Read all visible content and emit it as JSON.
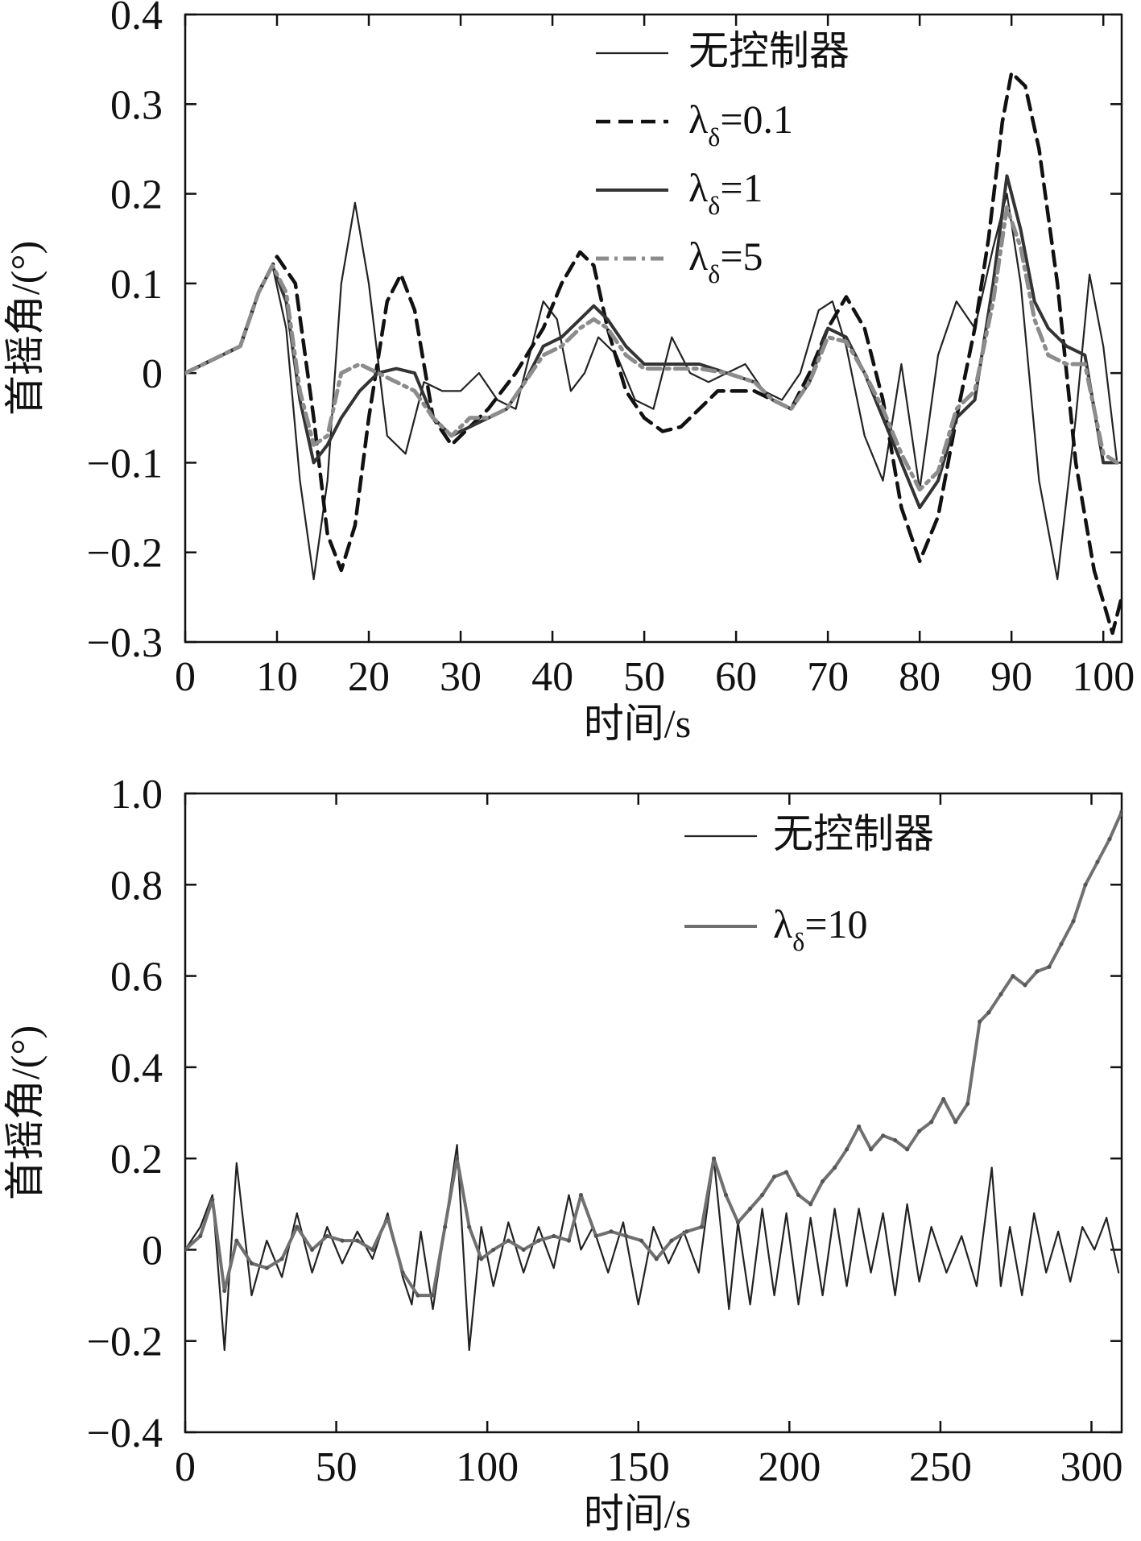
{
  "chart_data": [
    {
      "type": "line",
      "xlabel": "时间/s",
      "ylabel": "首摇角/(°)",
      "xlim": [
        0,
        102
      ],
      "ylim": [
        -0.3,
        0.4
      ],
      "xticks": [
        "0",
        "10",
        "20",
        "30",
        "40",
        "50",
        "60",
        "70",
        "80",
        "90",
        "100"
      ],
      "xtick_values": [
        0,
        10,
        20,
        30,
        40,
        50,
        60,
        70,
        80,
        90,
        100
      ],
      "yticks": [
        "0.4",
        "0.3",
        "0.2",
        "0.1",
        "0",
        "−0.1",
        "−0.2",
        "−0.3"
      ],
      "ytick_values": [
        0.4,
        0.3,
        0.2,
        0.1,
        0,
        -0.1,
        -0.2,
        -0.3
      ],
      "grid": false,
      "legend_position": "top-center",
      "series": [
        {
          "name": "无控制器",
          "style": "thin-solid",
          "color": "#222222",
          "x": [
            0,
            4,
            6,
            8,
            9.5,
            11,
            12.5,
            14,
            15.5,
            17,
            18.5,
            20,
            22,
            24,
            26,
            28,
            30,
            32,
            34,
            36,
            38,
            39,
            40.5,
            42,
            43.5,
            45,
            47,
            49,
            51,
            53,
            55,
            57,
            59,
            61,
            63,
            65,
            67,
            69,
            70.5,
            72,
            74,
            76,
            78,
            80,
            82,
            84,
            86,
            88,
            89.5,
            91,
            93,
            95,
            97,
            98.5,
            100,
            101.5
          ],
          "y": [
            0,
            0.02,
            0.03,
            0.09,
            0.12,
            0.05,
            -0.12,
            -0.23,
            -0.12,
            0.1,
            0.19,
            0.1,
            -0.07,
            -0.09,
            -0.01,
            -0.02,
            -0.02,
            0.0,
            -0.03,
            -0.04,
            0.04,
            0.08,
            0.06,
            -0.02,
            0.0,
            0.04,
            0.02,
            -0.03,
            -0.04,
            0.04,
            0.0,
            -0.01,
            0.0,
            0.01,
            -0.02,
            -0.03,
            0.0,
            0.07,
            0.08,
            0.03,
            -0.07,
            -0.12,
            0.01,
            -0.13,
            0.02,
            0.08,
            0.05,
            0.14,
            0.2,
            0.1,
            -0.12,
            -0.23,
            -0.05,
            0.11,
            0.03,
            -0.1
          ]
        },
        {
          "name": "λ=0.1",
          "style": "dashed",
          "color": "#111111",
          "x": [
            0,
            4,
            6,
            8,
            10,
            12,
            14,
            15.5,
            17,
            18.5,
            20,
            22,
            23.5,
            25,
            27,
            29,
            31,
            33,
            36,
            39,
            41,
            43,
            44.5,
            46,
            48,
            50,
            52,
            54,
            56,
            58,
            60,
            62,
            64,
            66,
            68,
            70,
            72,
            74,
            76,
            78,
            80,
            82,
            84,
            86,
            87.5,
            89,
            90,
            91.5,
            93,
            95,
            97,
            99,
            101,
            102
          ],
          "y": [
            0,
            0.02,
            0.03,
            0.09,
            0.13,
            0.1,
            -0.05,
            -0.18,
            -0.22,
            -0.17,
            -0.05,
            0.08,
            0.11,
            0.07,
            -0.05,
            -0.08,
            -0.06,
            -0.04,
            0.0,
            0.05,
            0.1,
            0.135,
            0.12,
            0.05,
            -0.02,
            -0.05,
            -0.065,
            -0.06,
            -0.04,
            -0.02,
            -0.02,
            -0.02,
            -0.03,
            -0.04,
            0.0,
            0.05,
            0.085,
            0.05,
            -0.03,
            -0.15,
            -0.21,
            -0.16,
            -0.05,
            0.05,
            0.15,
            0.28,
            0.335,
            0.32,
            0.25,
            0.1,
            -0.1,
            -0.22,
            -0.29,
            -0.25
          ]
        },
        {
          "name": "λ=1",
          "style": "medium-solid",
          "color": "#333333",
          "x": [
            0,
            4,
            6,
            8,
            9.5,
            11,
            12.5,
            14,
            15.5,
            17,
            19,
            21,
            23,
            25,
            27,
            29,
            31,
            33,
            35,
            37,
            39,
            41,
            43,
            44.5,
            46,
            48,
            50,
            53,
            56,
            59,
            62,
            64,
            66,
            68,
            70,
            72,
            74,
            76,
            78,
            80,
            82,
            84,
            86,
            88,
            89.5,
            91,
            92.5,
            94,
            96,
            98,
            100,
            101.5
          ],
          "y": [
            0,
            0.02,
            0.03,
            0.09,
            0.12,
            0.08,
            -0.03,
            -0.1,
            -0.08,
            -0.05,
            -0.02,
            0.0,
            0.005,
            0.0,
            -0.05,
            -0.07,
            -0.06,
            -0.05,
            -0.04,
            -0.01,
            0.03,
            0.04,
            0.06,
            0.075,
            0.06,
            0.03,
            0.01,
            0.01,
            0.01,
            0.0,
            -0.01,
            -0.03,
            -0.04,
            -0.01,
            0.05,
            0.04,
            0.0,
            -0.05,
            -0.1,
            -0.15,
            -0.12,
            -0.05,
            -0.03,
            0.1,
            0.22,
            0.16,
            0.08,
            0.05,
            0.03,
            0.02,
            -0.1,
            -0.1
          ]
        },
        {
          "name": "λ=5",
          "style": "dash-dot-gray",
          "color": "#8c8c8c",
          "x": [
            0,
            4,
            6,
            8,
            9.5,
            11,
            12.5,
            14,
            15.5,
            17,
            19,
            21,
            23,
            25,
            27,
            29,
            31,
            33,
            35,
            37,
            39,
            41,
            43,
            44.5,
            46,
            48,
            50,
            53,
            56,
            59,
            62,
            64,
            66,
            68,
            70,
            72,
            74,
            76,
            78,
            80,
            82,
            84,
            86,
            88,
            89.5,
            91,
            92.5,
            94,
            96,
            98,
            100,
            101.5
          ],
          "y": [
            0,
            0.02,
            0.03,
            0.09,
            0.12,
            0.09,
            -0.02,
            -0.08,
            -0.07,
            0.0,
            0.01,
            0.0,
            -0.01,
            -0.02,
            -0.05,
            -0.07,
            -0.05,
            -0.05,
            -0.04,
            -0.01,
            0.02,
            0.03,
            0.05,
            0.06,
            0.05,
            0.02,
            0.005,
            0.005,
            0.005,
            0.0,
            -0.01,
            -0.03,
            -0.04,
            -0.01,
            0.04,
            0.035,
            0.0,
            -0.04,
            -0.09,
            -0.13,
            -0.11,
            -0.04,
            -0.02,
            0.08,
            0.185,
            0.14,
            0.06,
            0.02,
            0.01,
            0.01,
            -0.09,
            -0.1
          ]
        }
      ],
      "legend_entries": [
        {
          "label": "无控制器",
          "sub": ""
        },
        {
          "label": "λ",
          "sub": "δ",
          "suffix": "=0.1"
        },
        {
          "label": "λ",
          "sub": "δ",
          "suffix": "=1"
        },
        {
          "label": "λ",
          "sub": "δ",
          "suffix": "=5"
        }
      ]
    },
    {
      "type": "line",
      "xlabel": "时间/s",
      "ylabel": "首摇角/(°)",
      "xlim": [
        0,
        310
      ],
      "ylim": [
        -0.4,
        1.0
      ],
      "xticks": [
        "0",
        "50",
        "100",
        "150",
        "200",
        "250",
        "300"
      ],
      "xtick_values": [
        0,
        50,
        100,
        150,
        200,
        250,
        300
      ],
      "yticks": [
        "1.0",
        "0.8",
        "0.6",
        "0.4",
        "0.2",
        "0",
        "−0.2",
        "−0.4"
      ],
      "ytick_values": [
        1.0,
        0.8,
        0.6,
        0.4,
        0.2,
        0,
        -0.2,
        -0.4
      ],
      "grid": false,
      "legend_position": "top-right",
      "series": [
        {
          "name": "无控制器",
          "style": "thin-solid",
          "color": "#222222",
          "x": [
            0,
            5,
            9,
            13,
            17,
            22,
            27,
            32,
            37,
            42,
            47,
            52,
            57,
            62,
            67,
            72,
            75,
            78,
            82,
            86,
            90,
            94,
            98,
            102,
            107,
            112,
            117,
            122,
            127,
            131,
            135,
            140,
            145,
            150,
            155,
            160,
            165,
            170,
            175,
            180,
            183,
            187,
            191,
            195,
            199,
            203,
            207,
            211,
            215,
            219,
            223,
            227,
            231,
            235,
            239,
            243,
            247,
            252,
            257,
            262,
            267,
            270,
            273,
            277,
            281,
            285,
            289,
            293,
            297,
            301,
            305,
            309
          ],
          "y": [
            0,
            0.05,
            0.12,
            -0.22,
            0.19,
            -0.1,
            0.02,
            -0.06,
            0.08,
            -0.05,
            0.05,
            -0.03,
            0.04,
            -0.02,
            0.08,
            -0.06,
            -0.12,
            0.04,
            -0.13,
            0.05,
            0.23,
            -0.22,
            0.05,
            -0.08,
            0.06,
            -0.05,
            0.05,
            -0.04,
            0.12,
            0.0,
            0.05,
            -0.05,
            0.06,
            -0.12,
            0.05,
            -0.03,
            0.04,
            -0.05,
            0.2,
            -0.13,
            0.06,
            -0.12,
            0.09,
            -0.1,
            0.08,
            -0.12,
            0.07,
            -0.1,
            0.09,
            -0.08,
            0.09,
            -0.05,
            0.08,
            -0.1,
            0.1,
            -0.07,
            0.05,
            -0.05,
            0.03,
            -0.08,
            0.18,
            -0.08,
            0.05,
            -0.1,
            0.08,
            -0.05,
            0.04,
            -0.07,
            0.05,
            0.0,
            0.07,
            -0.05
          ]
        },
        {
          "name": "λ=10",
          "style": "gray-marked",
          "color": "#707070",
          "x": [
            0,
            5,
            9,
            13,
            17,
            22,
            27,
            32,
            37,
            42,
            47,
            52,
            57,
            62,
            67,
            72,
            77,
            82,
            86,
            90,
            94,
            98,
            102,
            107,
            112,
            117,
            122,
            127,
            131,
            136,
            141,
            146,
            151,
            156,
            161,
            166,
            171,
            175,
            179,
            183,
            187,
            191,
            195,
            199,
            203,
            207,
            211,
            215,
            219,
            223,
            227,
            231,
            235,
            239,
            243,
            247,
            251,
            255,
            259,
            263,
            266,
            270,
            274,
            278,
            282,
            286,
            290,
            294,
            298,
            302,
            306,
            310
          ],
          "y": [
            0,
            0.03,
            0.11,
            -0.09,
            0.02,
            -0.03,
            -0.04,
            -0.02,
            0.05,
            0.0,
            0.03,
            0.02,
            0.02,
            0.0,
            0.07,
            -0.05,
            -0.1,
            -0.1,
            0.05,
            0.2,
            0.05,
            -0.02,
            0.0,
            0.02,
            0.0,
            0.02,
            0.03,
            0.02,
            0.12,
            0.03,
            0.04,
            0.03,
            0.02,
            -0.02,
            0.02,
            0.04,
            0.05,
            0.2,
            0.12,
            0.06,
            0.09,
            0.12,
            0.16,
            0.17,
            0.12,
            0.1,
            0.15,
            0.18,
            0.22,
            0.27,
            0.22,
            0.25,
            0.24,
            0.22,
            0.26,
            0.28,
            0.33,
            0.28,
            0.32,
            0.5,
            0.52,
            0.56,
            0.6,
            0.58,
            0.61,
            0.62,
            0.67,
            0.72,
            0.8,
            0.85,
            0.9,
            0.96
          ]
        }
      ],
      "legend_entries": [
        {
          "label": "无控制器",
          "sub": ""
        },
        {
          "label": "λ",
          "sub": "δ",
          "suffix": "=10"
        }
      ]
    }
  ]
}
